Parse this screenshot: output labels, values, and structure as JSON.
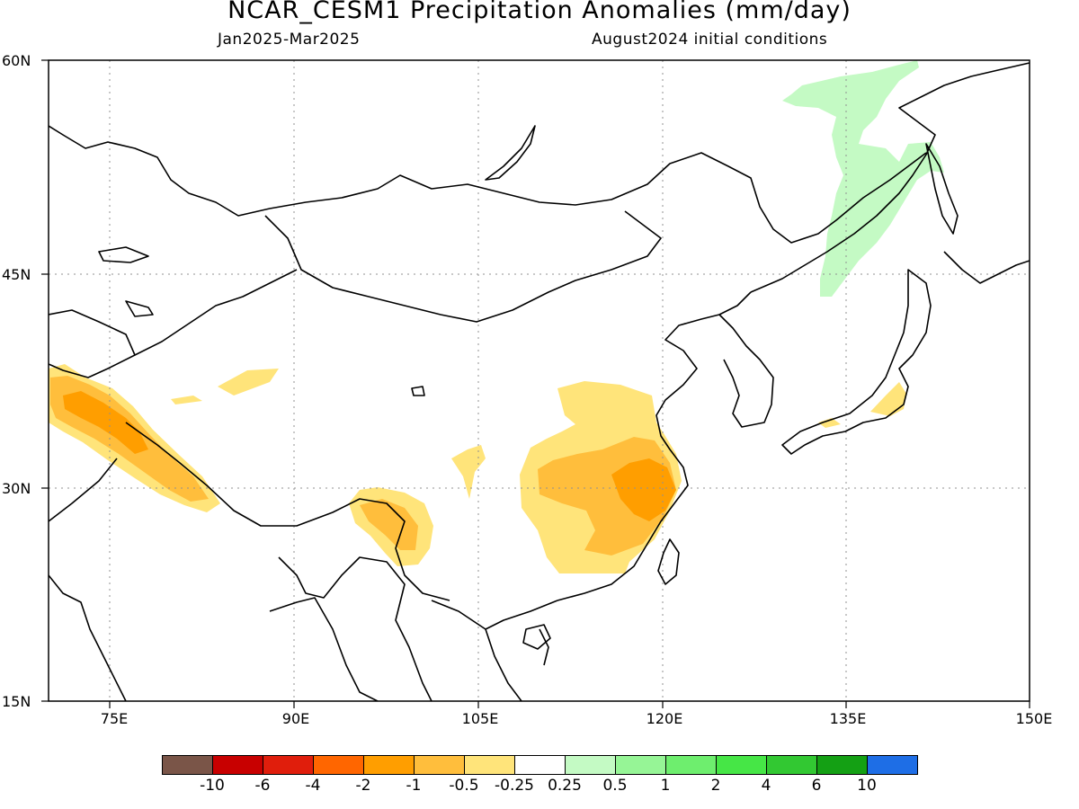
{
  "title": "NCAR_CESM1 Precipitation Anomalies (mm/day)",
  "period": "Jan2025-Mar2025",
  "initial_conditions": "August2024 initial conditions",
  "lat_labels": [
    "60N",
    "45N",
    "30N",
    "15N"
  ],
  "lon_labels": [
    "75E",
    "90E",
    "105E",
    "120E",
    "135E",
    "150E"
  ],
  "colorbar": {
    "labels": [
      "-10",
      "-6",
      "-4",
      "-2",
      "-1",
      "-0.5",
      "-0.25",
      "0.25",
      "0.5",
      "1",
      "2",
      "4",
      "6",
      "10"
    ],
    "colors": [
      "#7a5548",
      "#c80000",
      "#e01e0c",
      "#ff6600",
      "#ff9e00",
      "#ffbe3c",
      "#ffe47a",
      "#ffffff",
      "#c4fac4",
      "#96f596",
      "#6eee6e",
      "#46e646",
      "#32c832",
      "#14a014",
      "#1e6ee6"
    ]
  },
  "anomaly_colors": {
    "very_light_dry": "#ffe47a",
    "light_dry": "#ffbe3c",
    "moderate_dry": "#ff9e00",
    "light_wet": "#c4fac4"
  }
}
